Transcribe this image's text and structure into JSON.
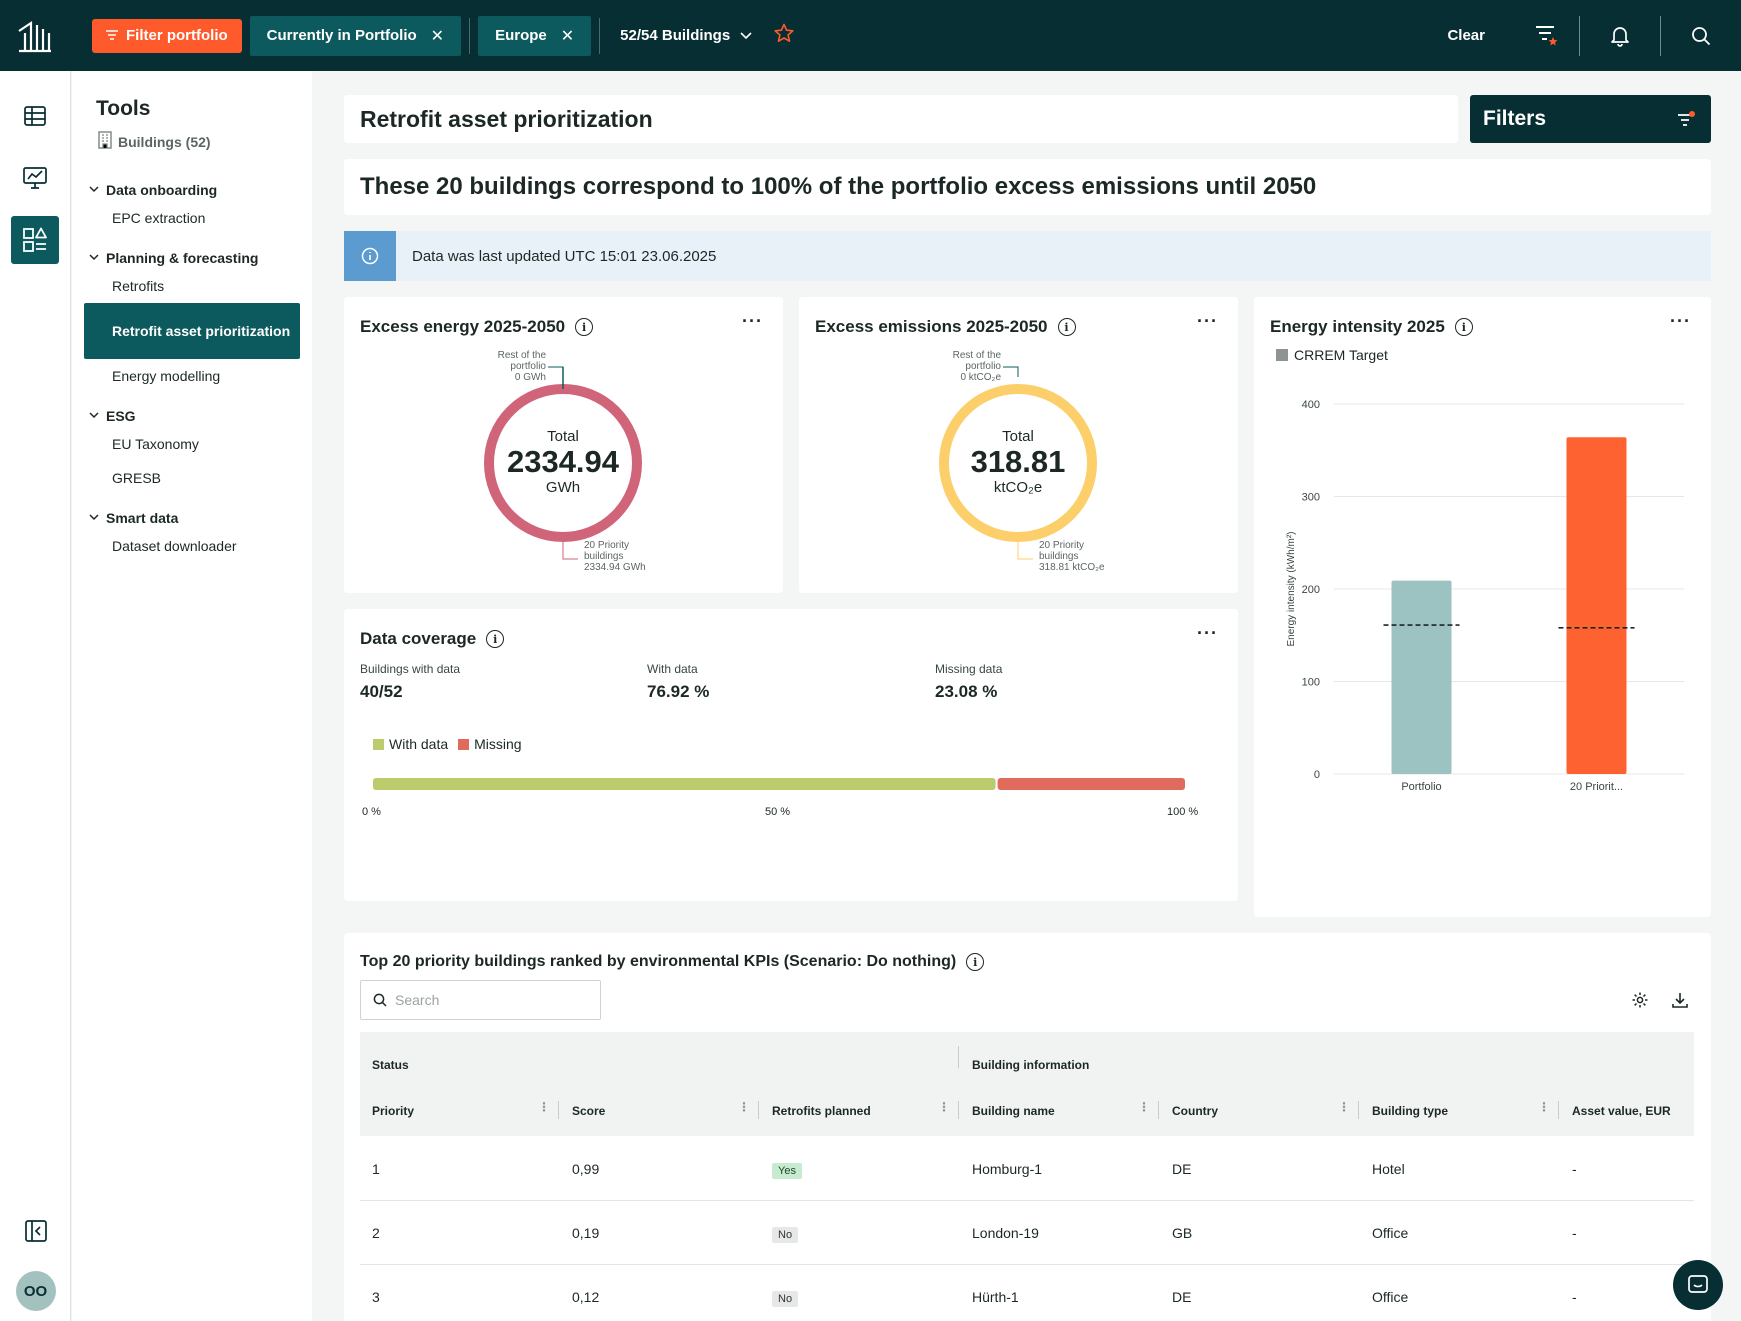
{
  "topbar": {
    "filter_label": "Filter portfolio",
    "chips": [
      {
        "label": "Currently in Portfolio"
      },
      {
        "label": "Europe"
      }
    ],
    "buildings_select": "52/54 Buildings",
    "clear_label": "Clear"
  },
  "tools": {
    "title": "Tools",
    "subtitle": "Buildings (52)",
    "groups": [
      {
        "label": "Data onboarding",
        "items": [
          "EPC extraction"
        ]
      },
      {
        "label": "Planning & forecasting",
        "items": [
          "Retrofits",
          "Retrofit asset prioritization",
          "Energy modelling"
        ]
      },
      {
        "label": "ESG",
        "items": [
          "EU Taxonomy",
          "GRESB"
        ]
      },
      {
        "label": "Smart data",
        "items": [
          "Dataset downloader"
        ]
      }
    ]
  },
  "avatar_initials": "OO",
  "page": {
    "title": "Retrofit asset prioritization",
    "filters_label": "Filters",
    "headline": "These 20 buildings correspond to 100% of the portfolio excess emissions until 2050",
    "info": "Data was last updated UTC 15:01 23.06.2025"
  },
  "energy_card": {
    "title": "Excess energy 2025-2050",
    "total_label": "Total",
    "total_value": "2334.94",
    "unit": "GWh",
    "rest_line1": "Rest of the",
    "rest_line2": "portfolio",
    "rest_value": "0 GWh",
    "prio_line1": "20 Priority",
    "prio_line2": "buildings",
    "prio_value": "2334.94 GWh",
    "color": "#d06579"
  },
  "emissions_card": {
    "title": "Excess emissions 2025-2050",
    "total_label": "Total",
    "total_value": "318.81",
    "unit": "ktCO₂e",
    "rest_line1": "Rest of the",
    "rest_line2": "portfolio",
    "rest_value": "0 ktCO₂e",
    "prio_line1": "20 Priority",
    "prio_line2": "buildings",
    "prio_value": "318.81 ktCO₂e",
    "color": "#fccf6a"
  },
  "intensity_card": {
    "title": "Energy intensity 2025",
    "legend": "CRREM Target"
  },
  "chart_data": {
    "type": "bar",
    "title": "Energy intensity 2025",
    "categories": [
      "Portfolio",
      "20 Priorit..."
    ],
    "values": [
      209,
      364
    ],
    "target_values": [
      161,
      158
    ],
    "bar_colors": [
      "#9cc2c1",
      "#ff6231"
    ],
    "ylabel": "Energy intensity (kWh/m²)",
    "ylim": [
      0,
      400
    ],
    "yticks": [
      0,
      100,
      200,
      300,
      400
    ],
    "legend": [
      "CRREM Target"
    ]
  },
  "coverage": {
    "title": "Data coverage",
    "stats": [
      {
        "label": "Buildings with data",
        "value": "40/52"
      },
      {
        "label": "With data",
        "value": "76.92 %"
      },
      {
        "label": "Missing data",
        "value": "23.08 %"
      }
    ],
    "legend_with": "With data",
    "legend_missing": "Missing",
    "with_fraction": 0.7692,
    "with_color": "#bccb6b",
    "missing_color": "#e06a5c",
    "axis": [
      "0 %",
      "50 %",
      "100 %"
    ]
  },
  "table": {
    "title": "Top 20 priority buildings ranked by environmental KPIs (Scenario: Do nothing)",
    "search_placeholder": "Search",
    "group_status": "Status",
    "group_building": "Building information",
    "columns": [
      "Priority",
      "Score",
      "Retrofits planned",
      "Building name",
      "Country",
      "Building type",
      "Asset value, EUR"
    ],
    "rows": [
      {
        "priority": "1",
        "score": "0,99",
        "retrofits": "Yes",
        "name": "Homburg-1",
        "country": "DE",
        "type": "Hotel",
        "asset": "-"
      },
      {
        "priority": "2",
        "score": "0,19",
        "retrofits": "No",
        "name": "London-19",
        "country": "GB",
        "type": "Office",
        "asset": "-"
      },
      {
        "priority": "3",
        "score": "0,12",
        "retrofits": "No",
        "name": "Hürth-1",
        "country": "DE",
        "type": "Office",
        "asset": "-"
      }
    ]
  }
}
